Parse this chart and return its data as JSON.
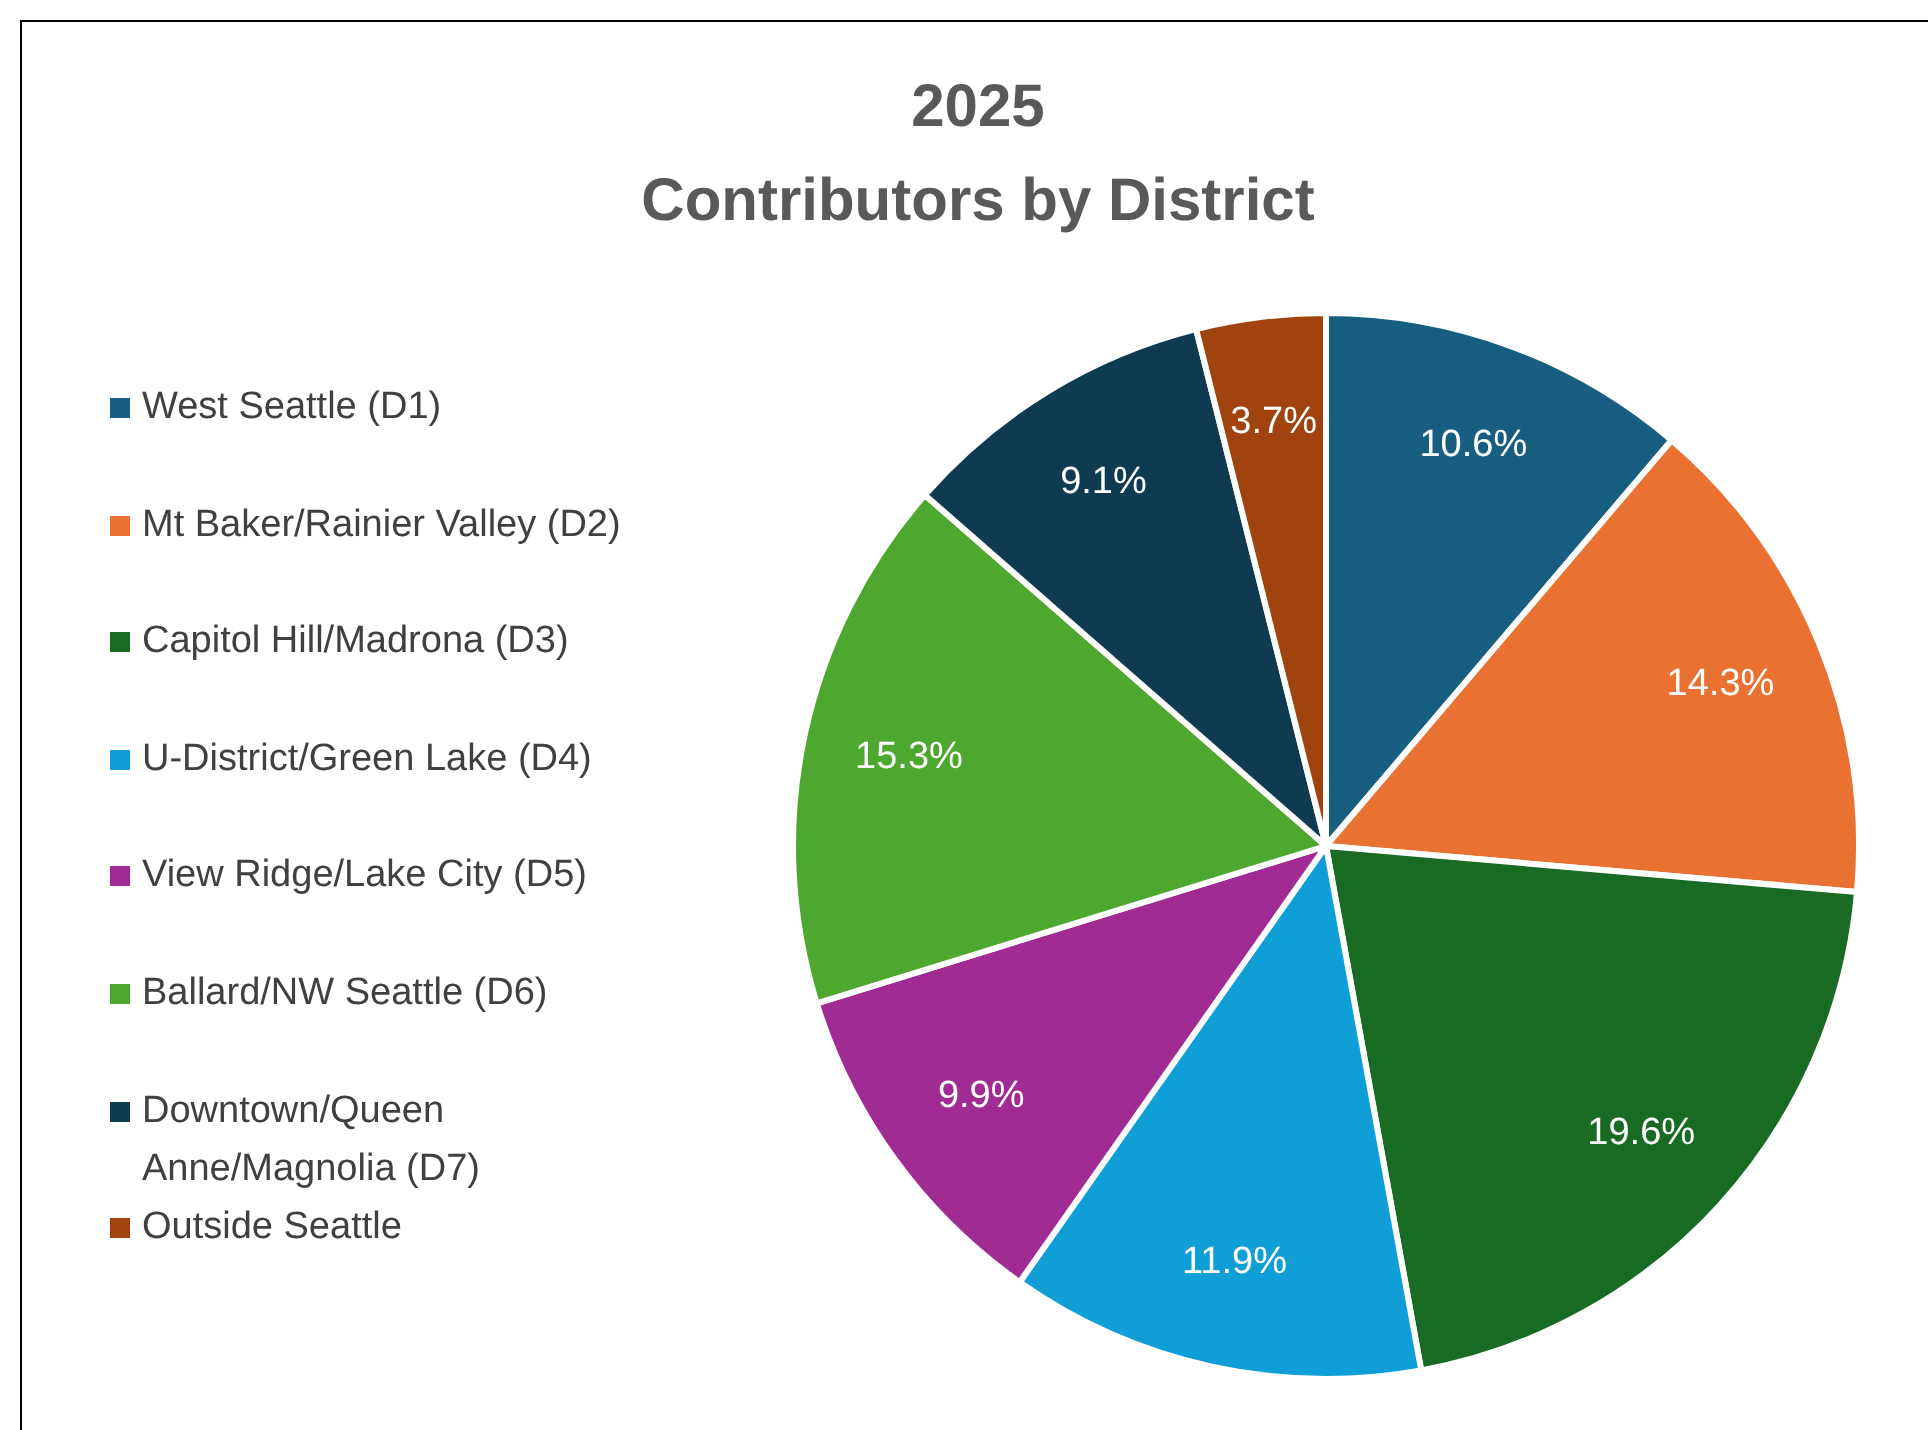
{
  "chart_data": {
    "type": "pie",
    "title": "2025\nContributors by District",
    "categories": [
      "West Seattle (D1)",
      "Mt Baker/Rainier Valley (D2)",
      "Capitol Hill/Madrona (D3)",
      "U-District/Green Lake (D4)",
      "View Ridge/Lake City (D5)",
      "Ballard/NW Seattle (D6)",
      "Downtown/Queen Anne/Magnolia (D7)",
      "Outside Seattle"
    ],
    "values": [
      10.6,
      14.3,
      19.6,
      11.9,
      9.9,
      15.3,
      9.1,
      3.7
    ],
    "value_labels": [
      "10.6%",
      "14.3%",
      "19.6%",
      "11.9%",
      "9.9%",
      "15.3%",
      "9.1%",
      "3.7%"
    ],
    "colors": [
      "#185e80",
      "#e97132",
      "#196b24",
      "#0f9ed5",
      "#a02b93",
      "#4ea72e",
      "#0e3a52",
      "#a0430f"
    ],
    "legend": "left"
  }
}
